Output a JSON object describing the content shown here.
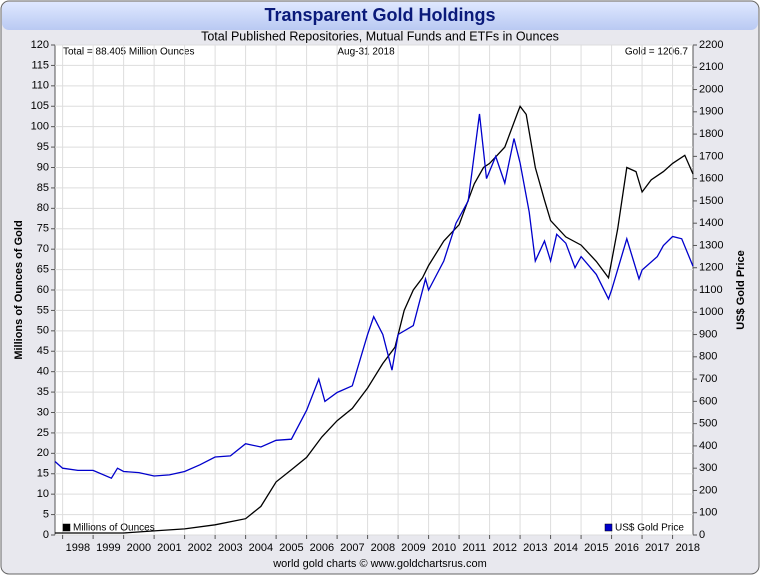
{
  "chart_data": {
    "type": "line",
    "title": "Transparent Gold Holdings",
    "subtitle": "Total Published Repositories, Mutual Funds and ETFs in Ounces",
    "annotations": [
      "Total = 88.405 Million Ounces",
      "Aug-31  2018",
      "Gold = 1206.7"
    ],
    "ylabel": "Millions of Ounces of Gold",
    "y2label": "US$ Gold Price",
    "footer": "world gold charts © www.goldchartsrus.com",
    "grid": true,
    "legend": "bottom",
    "xlim": [
      1997.75,
      2018.67
    ],
    "xticks": [
      {
        "value": 1998.5,
        "label": "1998"
      },
      {
        "value": 1999.5,
        "label": "1999"
      },
      {
        "value": 2000.5,
        "label": "2000"
      },
      {
        "value": 2001.5,
        "label": "2001"
      },
      {
        "value": 2002.5,
        "label": "2002"
      },
      {
        "value": 2003.5,
        "label": "2003"
      },
      {
        "value": 2004.5,
        "label": "2004"
      },
      {
        "value": 2005.5,
        "label": "2005"
      },
      {
        "value": 2006.5,
        "label": "2006"
      },
      {
        "value": 2007.5,
        "label": "2007"
      },
      {
        "value": 2008.5,
        "label": "2008"
      },
      {
        "value": 2009.5,
        "label": "2009"
      },
      {
        "value": 2010.5,
        "label": "2010"
      },
      {
        "value": 2011.5,
        "label": "2011"
      },
      {
        "value": 2012.5,
        "label": "2012"
      },
      {
        "value": 2013.5,
        "label": "2013"
      },
      {
        "value": 2014.5,
        "label": "2014"
      },
      {
        "value": 2015.5,
        "label": "2015"
      },
      {
        "value": 2016.5,
        "label": "2016"
      },
      {
        "value": 2017.5,
        "label": "2017"
      },
      {
        "value": 2018.5,
        "label": "2018"
      }
    ],
    "ylim": [
      0,
      120
    ],
    "yticks": [
      0,
      5,
      10,
      15,
      20,
      25,
      30,
      35,
      40,
      45,
      50,
      55,
      60,
      65,
      70,
      75,
      80,
      85,
      90,
      95,
      100,
      105,
      110,
      115,
      120
    ],
    "y2lim": [
      0,
      2200
    ],
    "y2ticks": [
      0,
      100,
      200,
      300,
      400,
      500,
      600,
      700,
      800,
      900,
      1000,
      1100,
      1200,
      1300,
      1400,
      1500,
      1600,
      1700,
      1800,
      1900,
      2000,
      2100,
      2200
    ],
    "series": [
      {
        "name": "Millions of Ounces",
        "color": "#000000",
        "x": [
          1997.75,
          2000,
          2001,
          2002,
          2003,
          2004,
          2004.5,
          2005,
          2005.5,
          2006,
          2006.5,
          2007,
          2007.5,
          2008,
          2008.5,
          2008.9,
          2009.2,
          2009.5,
          2009.8,
          2010,
          2010.5,
          2011,
          2011.2,
          2011.5,
          2011.8,
          2012,
          2012.5,
          2012.9,
          2013,
          2013.2,
          2013.5,
          2013.8,
          2014,
          2014.5,
          2015,
          2015.5,
          2015.9,
          2016.2,
          2016.5,
          2016.8,
          2017,
          2017.3,
          2017.7,
          2018,
          2018.4,
          2018.67
        ],
        "values": [
          0.5,
          0.5,
          1,
          1.5,
          2.5,
          4,
          7,
          13,
          16,
          19,
          24,
          28,
          31,
          36,
          42,
          46,
          55,
          60,
          63,
          66,
          72,
          76,
          80,
          86,
          90,
          91,
          95,
          103,
          105,
          103,
          90,
          82,
          77,
          73,
          71,
          67,
          63,
          75,
          90,
          89,
          84,
          87,
          89,
          91,
          93,
          88.405
        ]
      },
      {
        "name": "US$ Gold Price",
        "color": "#0000cc",
        "axis": "y2",
        "x": [
          1997.75,
          1998,
          1998.5,
          1999,
          1999.6,
          1999.8,
          2000,
          2000.5,
          2001,
          2001.5,
          2002,
          2002.5,
          2003,
          2003.5,
          2004,
          2004.5,
          2005,
          2005.5,
          2006,
          2006.4,
          2006.6,
          2007,
          2007.5,
          2008,
          2008.2,
          2008.5,
          2008.8,
          2009,
          2009.5,
          2009.9,
          2010,
          2010.5,
          2010.9,
          2011.3,
          2011.67,
          2011.9,
          2012.2,
          2012.5,
          2012.8,
          2013,
          2013.3,
          2013.5,
          2013.8,
          2014,
          2014.2,
          2014.5,
          2014.8,
          2015,
          2015.5,
          2015.9,
          2016,
          2016.5,
          2016.9,
          2017,
          2017.5,
          2017.7,
          2018,
          2018.3,
          2018.67
        ],
        "values": [
          330,
          300,
          290,
          290,
          255,
          300,
          285,
          280,
          265,
          270,
          285,
          315,
          350,
          355,
          410,
          395,
          425,
          430,
          560,
          700,
          600,
          640,
          670,
          900,
          980,
          900,
          740,
          900,
          940,
          1150,
          1100,
          1230,
          1400,
          1500,
          1890,
          1600,
          1700,
          1580,
          1780,
          1670,
          1450,
          1230,
          1320,
          1230,
          1350,
          1310,
          1200,
          1250,
          1170,
          1060,
          1100,
          1330,
          1150,
          1190,
          1250,
          1300,
          1340,
          1330,
          1206.7
        ]
      }
    ]
  }
}
